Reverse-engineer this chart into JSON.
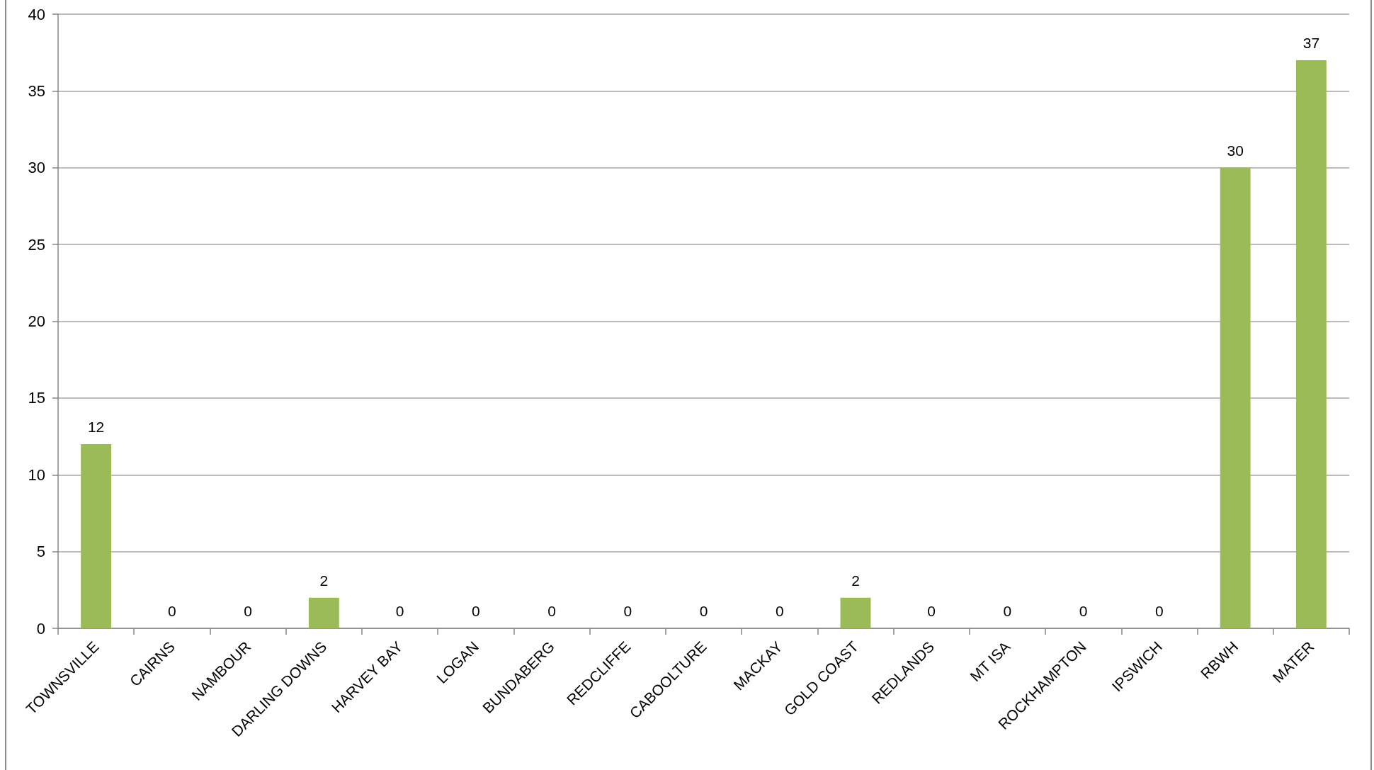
{
  "chart_data": {
    "type": "bar",
    "categories": [
      "TOWNSVILLE",
      "CAIRNS",
      "NAMBOUR",
      "DARLING DOWNS",
      "HARVEY BAY",
      "LOGAN",
      "BUNDABERG",
      "REDCLIFFE",
      "CABOOLTURE",
      "MACKAY",
      "GOLD COAST",
      "REDLANDS",
      "MT ISA",
      "ROCKHAMPTON",
      "IPSWICH",
      "RBWH",
      "MATER"
    ],
    "values": [
      12,
      0,
      0,
      2,
      0,
      0,
      0,
      0,
      0,
      0,
      2,
      0,
      0,
      0,
      0,
      30,
      37
    ],
    "color": "#9bbb59",
    "ylim": [
      0,
      40
    ],
    "yticks": [
      0,
      5,
      10,
      15,
      20,
      25,
      30,
      35,
      40
    ],
    "grid": "y",
    "data_labels": true
  }
}
